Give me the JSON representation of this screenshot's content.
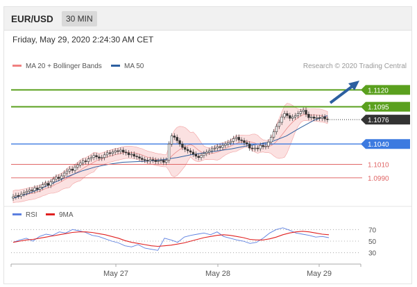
{
  "header": {
    "symbol": "EUR/USD",
    "timeframe": "30 MIN"
  },
  "datetime": "Friday, May 29, 2020 2:24:30 AM CET",
  "chart_data": [
    {
      "type": "line",
      "legend": [
        {
          "name": "MA 20 + Bollinger Bands",
          "color": "#f08080"
        },
        {
          "name": "MA 50",
          "color": "#2c5fa0"
        }
      ],
      "credit": "Research © 2020 Trading Central",
      "x_ticks": [
        "May 27",
        "May 28",
        "May 29"
      ],
      "ylim": [
        1.0955,
        1.1145
      ],
      "levels": [
        {
          "value": 1.112,
          "label": "1.1120",
          "color": "#5aa01e",
          "kind": "resistance",
          "tag": "filled"
        },
        {
          "value": 1.1095,
          "label": "1.1095",
          "color": "#5aa01e",
          "kind": "resistance",
          "tag": "filled"
        },
        {
          "value": 1.1076,
          "label": "1.1076",
          "color": "#333333",
          "kind": "last-price",
          "tag": "dark"
        },
        {
          "value": 1.104,
          "label": "1.1040",
          "color": "#3c7ae0",
          "kind": "pivot",
          "tag": "filled"
        },
        {
          "value": 1.101,
          "label": "1.1010",
          "color": "#e06666",
          "kind": "support",
          "tag": "text"
        },
        {
          "value": 1.099,
          "label": "1.0990",
          "color": "#e06666",
          "kind": "support",
          "tag": "text"
        }
      ],
      "series": [
        {
          "name": "Price",
          "kind": "candles",
          "values": [
            1.0962,
            1.0964,
            1.0963,
            1.0966,
            1.0968,
            1.097,
            1.0972,
            1.0971,
            1.0975,
            1.0973,
            1.0976,
            1.098,
            1.0982,
            1.0979,
            1.0984,
            1.0988,
            1.0991,
            1.0989,
            1.0993,
            1.0997,
            1.1,
            1.1003,
            1.1001,
            1.1006,
            1.1009,
            1.1012,
            1.1015,
            1.1014,
            1.1018,
            1.102,
            1.1023,
            1.1021,
            1.1019,
            1.102,
            1.1024,
            1.1027,
            1.1026,
            1.1028,
            1.103,
            1.1029,
            1.1031,
            1.1028,
            1.1027,
            1.1024,
            1.1025,
            1.1022,
            1.1021,
            1.1019,
            1.1017,
            1.1016,
            1.1015,
            1.1017,
            1.1016,
            1.1014,
            1.1015,
            1.1016,
            1.1013,
            1.1016,
            1.104,
            1.1052,
            1.105,
            1.1045,
            1.104,
            1.1035,
            1.1032,
            1.103,
            1.1028,
            1.1025,
            1.1022,
            1.102,
            1.1023,
            1.1026,
            1.1028,
            1.103,
            1.1033,
            1.1034,
            1.1036,
            1.1035,
            1.1038,
            1.104,
            1.1042,
            1.1044,
            1.1048,
            1.105,
            1.1046,
            1.1045,
            1.1042,
            1.104,
            1.1034,
            1.1033,
            1.1034,
            1.1033,
            1.1038,
            1.1036,
            1.1037,
            1.1043,
            1.105,
            1.1058,
            1.1066,
            1.1072,
            1.108,
            1.1085,
            1.1082,
            1.1078,
            1.108,
            1.1082,
            1.1085,
            1.1088,
            1.109,
            1.1084,
            1.1079,
            1.108,
            1.1078,
            1.1079,
            1.1078,
            1.108,
            1.1077,
            1.1076
          ]
        },
        {
          "name": "MA 50",
          "kind": "line",
          "values": [
            1.096,
            1.0966,
            1.0974,
            1.0983,
            1.0992,
            1.1,
            1.1006,
            1.101,
            1.1013,
            1.1014,
            1.1015,
            1.1017,
            1.102,
            1.1024,
            1.1027,
            1.103,
            1.1033,
            1.1037,
            1.104,
            1.1044,
            1.1052,
            1.1064,
            1.1075,
            1.1082
          ]
        }
      ]
    },
    {
      "type": "line",
      "legend": [
        {
          "name": "RSI",
          "color": "#5b7fe0"
        },
        {
          "name": "9MA",
          "color": "#e02020"
        }
      ],
      "ylim": [
        20,
        80
      ],
      "y_ticks": [
        "70",
        "50",
        "30"
      ],
      "y_tick_values": [
        70,
        50,
        30
      ],
      "series": [
        {
          "name": "RSI",
          "values": [
            48,
            52,
            55,
            50,
            58,
            62,
            60,
            66,
            64,
            70,
            68,
            65,
            60,
            58,
            54,
            50,
            47,
            42,
            40,
            44,
            38,
            36,
            34,
            55,
            52,
            48,
            57,
            60,
            62,
            64,
            61,
            66,
            58,
            55,
            52,
            50,
            46,
            48,
            55,
            64,
            70,
            73,
            69,
            64,
            62,
            60,
            57,
            58,
            56
          ]
        },
        {
          "name": "9MA",
          "values": [
            48,
            50,
            52,
            53,
            55,
            57,
            59,
            61,
            63,
            65,
            66,
            66,
            65,
            63,
            61,
            58,
            55,
            51,
            48,
            46,
            44,
            42,
            41,
            42,
            43,
            45,
            47,
            50,
            53,
            56,
            58,
            60,
            61,
            60,
            58,
            56,
            53,
            52,
            52,
            54,
            57,
            61,
            64,
            66,
            67,
            66,
            64,
            62,
            61
          ]
        }
      ]
    }
  ]
}
